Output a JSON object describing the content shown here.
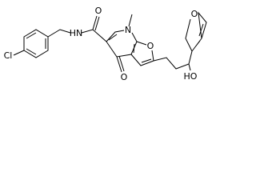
{
  "atoms": [
    {
      "label": "Cl"
    },
    {
      "label": "HN"
    },
    {
      "label": "O"
    },
    {
      "label": "N"
    },
    {
      "label": "O"
    },
    {
      "label": "O"
    },
    {
      "label": "HO"
    },
    {
      "label": "O"
    }
  ]
}
